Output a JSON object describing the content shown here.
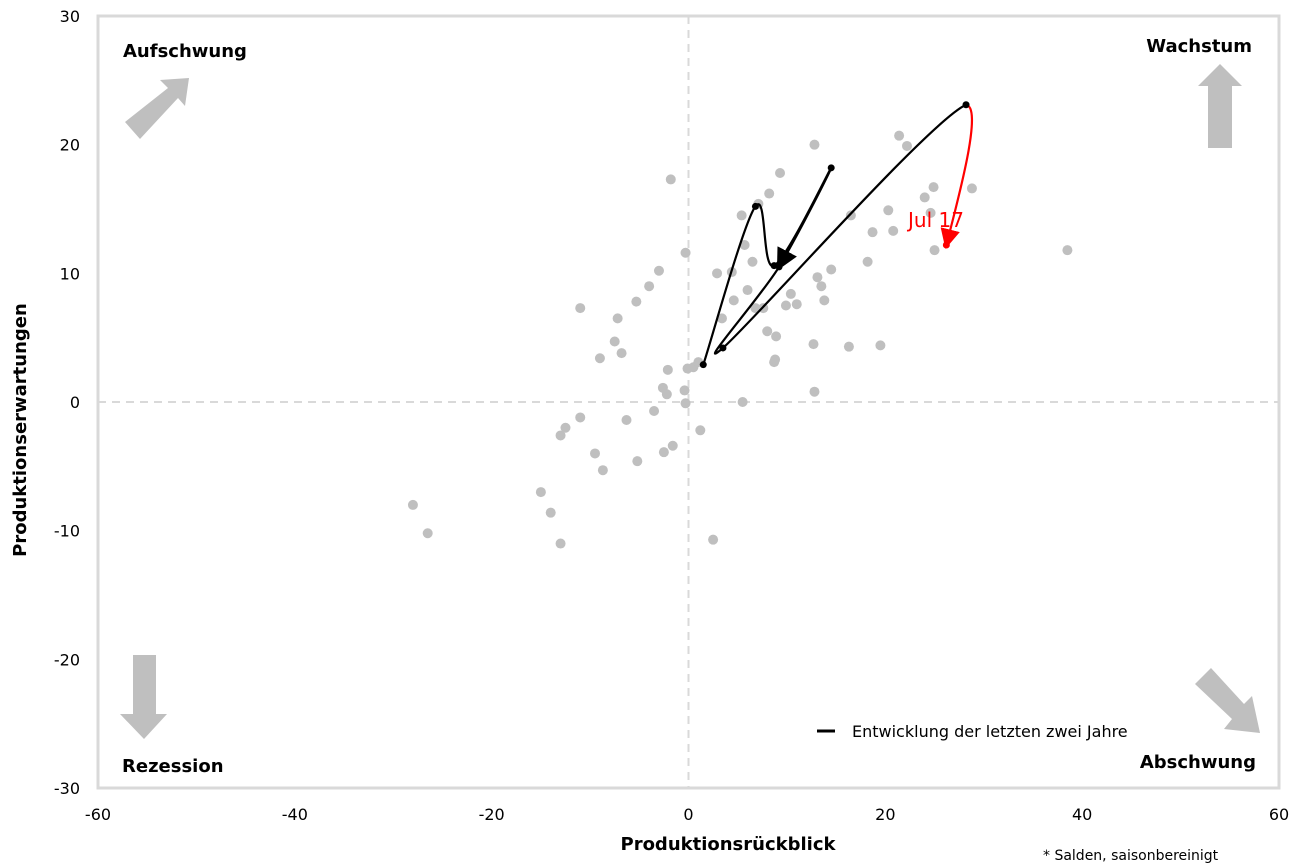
{
  "chart_data": {
    "type": "scatter",
    "xlabel": "Produktionsrückblick",
    "ylabel": "Produktionserwartungen",
    "xlim": [
      -60,
      60
    ],
    "ylim": [
      -30,
      30
    ],
    "xticks": [
      -60,
      -40,
      -20,
      0,
      20,
      40,
      60
    ],
    "yticks": [
      -30,
      -20,
      -10,
      0,
      10,
      20,
      30
    ],
    "xtick_labels": [
      "-60",
      "-40",
      "-20",
      "0",
      "20",
      "40",
      "60"
    ],
    "ytick_labels": [
      "-30",
      "-20",
      "-10",
      "0",
      "10",
      "20",
      "30"
    ],
    "quadrants": {
      "top_left": "Aufschwung",
      "top_right": "Wachstum",
      "bottom_left": "Rezession",
      "bottom_right": "Abschwung"
    },
    "legend": {
      "label": "Entwicklung der letzten zwei Jahre",
      "position": "bottom-right"
    },
    "footnote": "* Salden, saisonbereinigt",
    "callout": {
      "label": "Jul 17",
      "color": "#ff0000"
    },
    "colors": {
      "scatter": "#bfbfbf",
      "path": "#000000",
      "latest": "#ff0000",
      "frame": "#d9d9d9",
      "zero_lines": "#d9d9d9",
      "quadrant_arrows": "#bfbfbf"
    },
    "series": [
      {
        "type": "scatter",
        "points": [
          [
            -28,
            -8
          ],
          [
            -26.5,
            -10.2
          ],
          [
            -15,
            -7
          ],
          [
            -14,
            -8.6
          ],
          [
            -13,
            -11
          ],
          [
            -13,
            -2.6
          ],
          [
            -12.5,
            -2
          ],
          [
            -11,
            -1.2
          ],
          [
            -11,
            7.3
          ],
          [
            -9.5,
            -4
          ],
          [
            -9,
            3.4
          ],
          [
            -8.7,
            -5.3
          ],
          [
            -7.5,
            4.7
          ],
          [
            -7.2,
            6.5
          ],
          [
            -6.8,
            3.8
          ],
          [
            -6.3,
            -1.4
          ],
          [
            -5.3,
            7.8
          ],
          [
            -5.2,
            -4.6
          ],
          [
            -4,
            9
          ],
          [
            -3.5,
            -0.7
          ],
          [
            -3,
            10.2
          ],
          [
            -2.6,
            1.1
          ],
          [
            -2.5,
            -3.9
          ],
          [
            -2.2,
            0.6
          ],
          [
            -2.1,
            2.5
          ],
          [
            -1.8,
            17.3
          ],
          [
            -1.6,
            -3.4
          ],
          [
            -0.4,
            0.9
          ],
          [
            -0.3,
            11.6
          ],
          [
            -0.3,
            -0.1
          ],
          [
            -0.1,
            2.6
          ],
          [
            0.5,
            2.7
          ],
          [
            1,
            3.1
          ],
          [
            1.2,
            -2.2
          ],
          [
            2.5,
            -10.7
          ],
          [
            2.9,
            10
          ],
          [
            3.4,
            6.5
          ],
          [
            4.4,
            10.1
          ],
          [
            4.6,
            7.9
          ],
          [
            5.4,
            14.5
          ],
          [
            5.5,
            0
          ],
          [
            5.7,
            12.2
          ],
          [
            6,
            8.7
          ],
          [
            6.5,
            10.9
          ],
          [
            6.8,
            7.3
          ],
          [
            7.1,
            15.4
          ],
          [
            7.6,
            7.3
          ],
          [
            8,
            5.5
          ],
          [
            8.2,
            16.2
          ],
          [
            8.7,
            3.1
          ],
          [
            8.8,
            3.3
          ],
          [
            8.9,
            5.1
          ],
          [
            9.3,
            17.8
          ],
          [
            9.9,
            7.5
          ],
          [
            10.4,
            8.4
          ],
          [
            11,
            7.6
          ],
          [
            12.7,
            4.5
          ],
          [
            12.8,
            0.8
          ],
          [
            12.8,
            20
          ],
          [
            13.1,
            9.7
          ],
          [
            13.5,
            9
          ],
          [
            13.8,
            7.9
          ],
          [
            14.5,
            10.3
          ],
          [
            16.3,
            4.3
          ],
          [
            16.5,
            14.5
          ],
          [
            18.2,
            10.9
          ],
          [
            18.7,
            13.2
          ],
          [
            19.5,
            4.4
          ],
          [
            20.3,
            14.9
          ],
          [
            20.8,
            13.3
          ],
          [
            21.4,
            20.7
          ],
          [
            22.2,
            19.9
          ],
          [
            24,
            15.9
          ],
          [
            24.6,
            14.7
          ],
          [
            24.9,
            16.7
          ],
          [
            25,
            11.8
          ],
          [
            28.8,
            16.6
          ],
          [
            38.5,
            11.8
          ]
        ]
      },
      {
        "type": "path",
        "name": "Entwicklung der letzten zwei Jahre",
        "points": [
          [
            1.5,
            2.9
          ],
          [
            6.8,
            15.2
          ],
          [
            8.7,
            10.6
          ],
          [
            14.5,
            18.2
          ],
          [
            9.2,
            10.5
          ],
          [
            3.5,
            4.2
          ],
          [
            28.2,
            23.1
          ],
          [
            26.2,
            12.2
          ]
        ]
      }
    ]
  }
}
